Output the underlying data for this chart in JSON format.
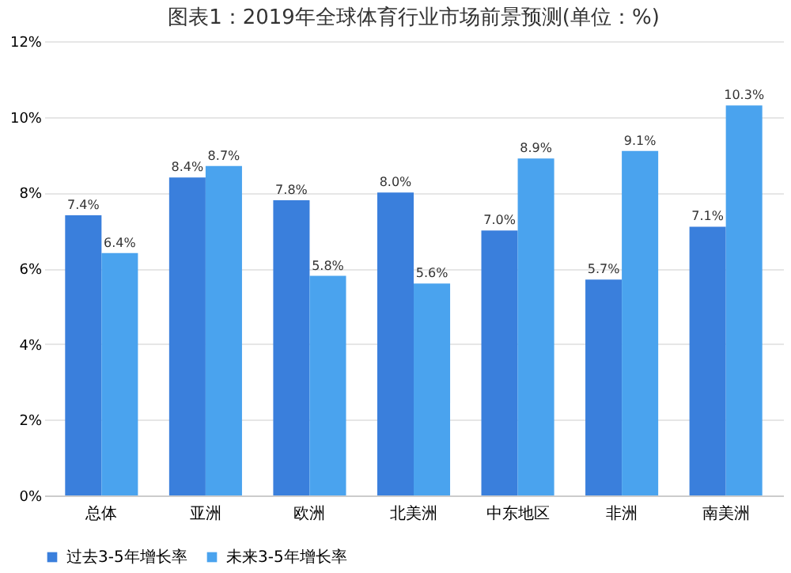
{
  "chart_data": {
    "type": "bar",
    "title": "图表1：2019年全球体育行业市场前景预测(单位：%)",
    "categories": [
      "总体",
      "亚洲",
      "欧洲",
      "北美洲",
      "中东地区",
      "非洲",
      "南美洲"
    ],
    "series": [
      {
        "name": "过去3-5年增长率",
        "color": "#3a7fdc",
        "values": [
          7.4,
          8.4,
          7.8,
          8.0,
          7.0,
          5.7,
          7.1
        ],
        "value_labels": [
          "7.4%",
          "8.4%",
          "7.8%",
          "8.0%",
          "7.0%",
          "5.7%",
          "7.1%"
        ]
      },
      {
        "name": "未来3-5年增长率",
        "color": "#4aa3ee",
        "values": [
          6.4,
          8.7,
          5.8,
          5.6,
          8.9,
          9.1,
          10.3
        ],
        "value_labels": [
          "6.4%",
          "8.7%",
          "5.8%",
          "5.6%",
          "8.9%",
          "9.1%",
          "10.3%"
        ]
      }
    ],
    "ylim": [
      0,
      12
    ],
    "yticks": [
      {
        "value": 0,
        "label": "0%"
      },
      {
        "value": 2,
        "label": "2%"
      },
      {
        "value": 4,
        "label": "4%"
      },
      {
        "value": 6,
        "label": "6%"
      },
      {
        "value": 8,
        "label": "8%"
      },
      {
        "value": 10,
        "label": "10%"
      },
      {
        "value": 12,
        "label": "12%"
      }
    ],
    "grid": "y",
    "legend": "bottom"
  }
}
